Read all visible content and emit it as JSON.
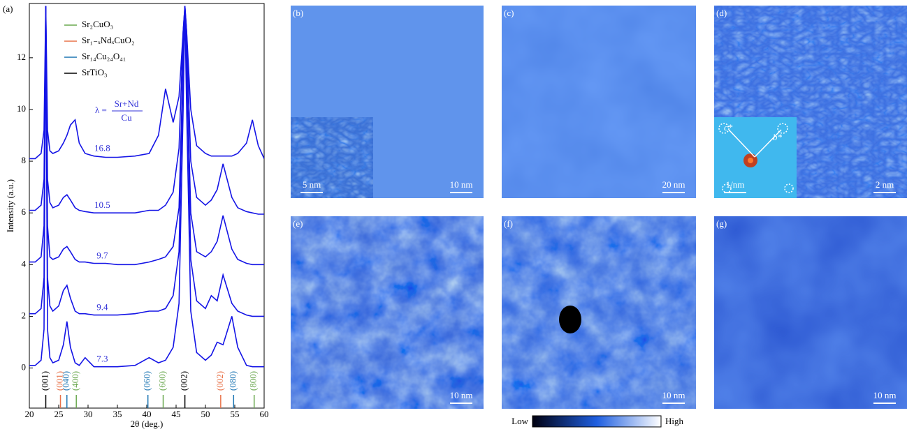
{
  "chart_data": {
    "type": "line",
    "panel_label": "(a)",
    "xlabel": "2θ (deg.)",
    "ylabel": "Intensity (a.u.)",
    "x": [
      20,
      21,
      22,
      22.5,
      22.8,
      23.1,
      23.5,
      24,
      25,
      25.8,
      26.4,
      27,
      27.8,
      28.5,
      29.5,
      31,
      33,
      35,
      38,
      40.4,
      42,
      43.2,
      44.5,
      45.5,
      46.2,
      46.5,
      46.8,
      47.5,
      48.5,
      50,
      51,
      52,
      53,
      54.5,
      55.5,
      57,
      58,
      59,
      60
    ],
    "series": [
      {
        "name": "7.3",
        "color": "#1414e6",
        "values": [
          0.1,
          0.1,
          0.3,
          1.5,
          14,
          1.5,
          0.4,
          0.2,
          0.3,
          0.9,
          1.8,
          0.8,
          0.2,
          0.1,
          0.4,
          0.05,
          0.05,
          0.05,
          0.1,
          0.4,
          0.2,
          0.3,
          0.8,
          2.5,
          10,
          14,
          10,
          2.2,
          0.6,
          0.3,
          0.5,
          1.0,
          0.9,
          2.0,
          0.8,
          0.1,
          0.05,
          0.05,
          0.05
        ]
      },
      {
        "name": "9.4",
        "color": "#1414e6",
        "values": [
          2.1,
          2.1,
          2.3,
          3.5,
          14,
          3.5,
          2.4,
          2.2,
          2.4,
          3.0,
          3.2,
          2.7,
          2.2,
          2.1,
          2.1,
          2.05,
          2.05,
          2.05,
          2.1,
          2.2,
          2.2,
          2.3,
          2.8,
          4.5,
          12,
          14,
          12,
          4.2,
          2.6,
          2.3,
          2.8,
          2.6,
          3.6,
          2.5,
          2.2,
          2.05,
          2.0,
          2.0,
          2.0
        ]
      },
      {
        "name": "9.7",
        "color": "#1414e6",
        "values": [
          4.1,
          4.1,
          4.3,
          5.5,
          14,
          5.5,
          4.3,
          4.2,
          4.3,
          4.6,
          4.7,
          4.5,
          4.2,
          4.1,
          4.1,
          4.05,
          4.05,
          4.0,
          4.0,
          4.1,
          4.2,
          4.3,
          4.7,
          6.2,
          12,
          14,
          12,
          6.0,
          4.5,
          4.3,
          4.5,
          4.9,
          5.9,
          4.6,
          4.2,
          4.05,
          4.0,
          4.0,
          4.0
        ]
      },
      {
        "name": "10.5",
        "color": "#1414e6",
        "values": [
          6.1,
          6.1,
          6.3,
          7.3,
          14,
          7.3,
          6.4,
          6.2,
          6.3,
          6.6,
          6.7,
          6.5,
          6.2,
          6.1,
          6.05,
          6.0,
          6.0,
          6.0,
          6.0,
          6.1,
          6.1,
          6.3,
          6.8,
          8.5,
          13,
          14,
          13,
          8.0,
          6.6,
          6.3,
          6.5,
          6.9,
          7.9,
          6.6,
          6.2,
          6.05,
          6.0,
          5.95,
          5.95
        ]
      },
      {
        "name": "16.8",
        "color": "#1414e6",
        "values": [
          8.1,
          8.1,
          8.3,
          9.2,
          14,
          9.2,
          8.4,
          8.3,
          8.4,
          8.7,
          9.0,
          9.4,
          9.6,
          8.7,
          8.3,
          8.2,
          8.15,
          8.15,
          8.2,
          8.3,
          9.0,
          10.8,
          9.5,
          10.5,
          13,
          14,
          13,
          10.0,
          8.6,
          8.3,
          8.2,
          8.2,
          8.2,
          8.2,
          8.3,
          8.7,
          9.6,
          8.6,
          8.1
        ]
      }
    ],
    "xlim": [
      20,
      60
    ],
    "ylim": [
      -1.55,
      14.1
    ],
    "xticks": [
      20,
      25,
      30,
      35,
      40,
      45,
      50,
      55,
      60
    ],
    "yticks": [
      0,
      2,
      4,
      6,
      8,
      10,
      12
    ],
    "legend": [
      {
        "name": "Sr₂CuO₃",
        "color": "#6aa84f"
      },
      {
        "name": "Sr₁₋ₓNdₓCuO₂",
        "color": "#e8734a"
      },
      {
        "name": "Sr₁₄Cu₂₄O₄₁",
        "color": "#1f77b4"
      },
      {
        "name": "SrTiO₃",
        "color": "#000000"
      }
    ],
    "annotation": {
      "lhs": "λ =",
      "numerator": "Sr+Nd",
      "denominator": "Cu"
    },
    "reflections": [
      {
        "x": 22.8,
        "label": "(001)",
        "color": "#000000"
      },
      {
        "x": 25.3,
        "label": "(001)",
        "color": "#e8734a"
      },
      {
        "x": 26.4,
        "label": "(040)",
        "color": "#1f77b4"
      },
      {
        "x": 28.0,
        "label": "(400)",
        "color": "#6aa84f"
      },
      {
        "x": 40.2,
        "label": "(060)",
        "color": "#1f77b4"
      },
      {
        "x": 42.8,
        "label": "(600)",
        "color": "#6aa84f"
      },
      {
        "x": 46.5,
        "label": "(002)",
        "color": "#000000"
      },
      {
        "x": 52.6,
        "label": "(002)",
        "color": "#e8734a"
      },
      {
        "x": 54.8,
        "label": "(080)",
        "color": "#1f77b4"
      },
      {
        "x": 58.3,
        "label": "(800)",
        "color": "#6aa84f"
      }
    ]
  },
  "panels": [
    {
      "label": "(b)",
      "scale": "10 nm",
      "inset_scale": "5 nm"
    },
    {
      "label": "(c)",
      "scale": "20 nm"
    },
    {
      "label": "(d)",
      "scale": "2 nm",
      "inset_scale": "1/nm",
      "inset_c": "c*",
      "inset_b": "b*"
    },
    {
      "label": "(e)",
      "scale": "10 nm"
    },
    {
      "label": "(f)",
      "scale": "10 nm"
    },
    {
      "label": "(g)",
      "scale": "10 nm"
    }
  ],
  "colorbar": {
    "low": "Low",
    "high": "High"
  }
}
